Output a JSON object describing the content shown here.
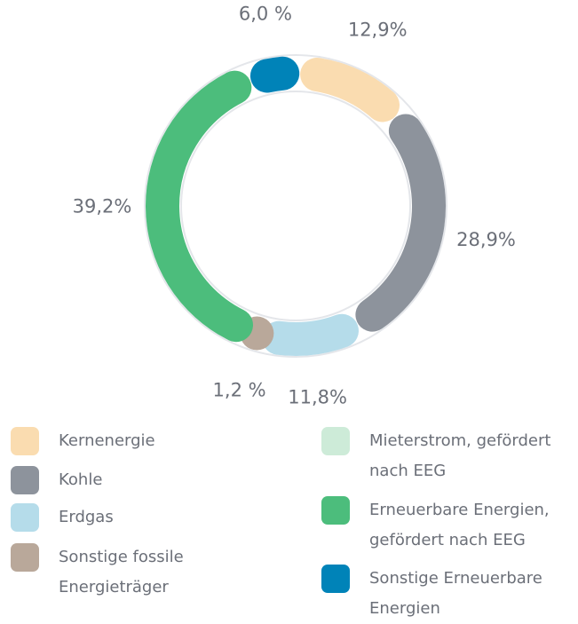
{
  "chart_data": {
    "type": "donut",
    "categories": [
      "Kernenergie",
      "Kohle",
      "Erdgas",
      "Sonstige fossile Energieträger",
      "Mieterstrom, gefördert nach EEG",
      "Erneuerbare Energien, gefördert nach EEG",
      "Sonstige Erneuerbare Energien"
    ],
    "values": [
      12.9,
      28.9,
      11.8,
      1.2,
      0,
      39.2,
      6.0
    ],
    "value_labels": [
      "12,9%",
      "28,9%",
      "11,8%",
      "1,2 %",
      null,
      "39,2%",
      "6,0 %"
    ],
    "colors": [
      "#fadcb0",
      "#8d939c",
      "#b5dcea",
      "#b9a89a",
      "#cdebd8",
      "#4cbd7c",
      "#0083b8"
    ]
  }
}
